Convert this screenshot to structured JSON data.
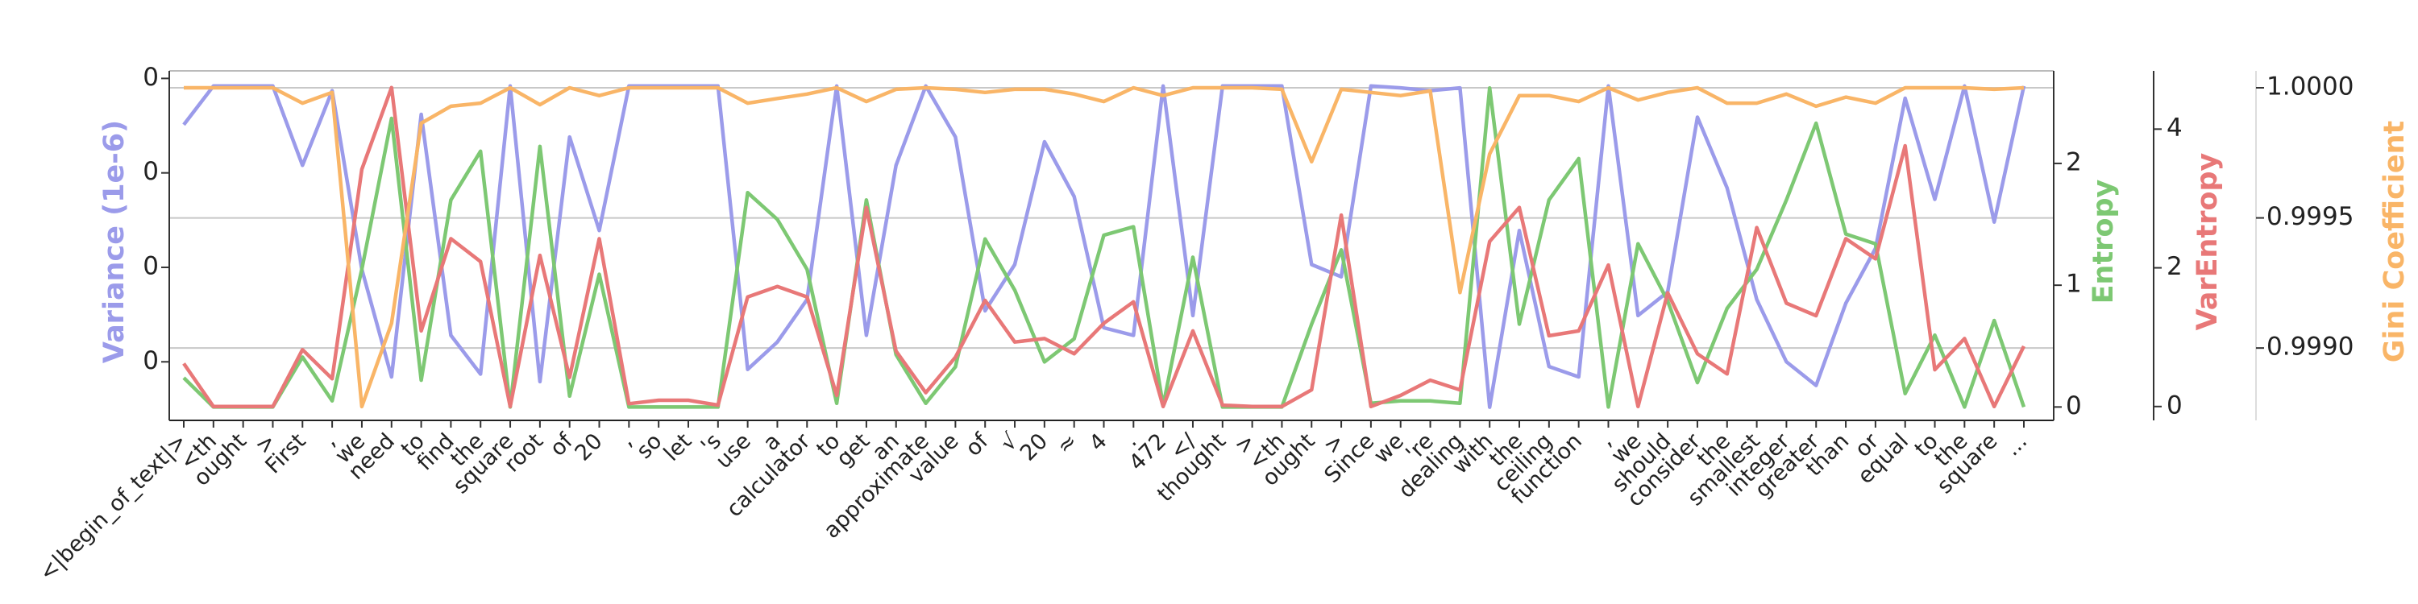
{
  "chart_data": {
    "type": "line",
    "categories": [
      "<|begin_of_text|>",
      "<th",
      "ought",
      ">",
      "First",
      ",",
      "we",
      "need",
      "to",
      "find",
      "the",
      "square",
      "root",
      "of",
      "20",
      ",",
      "so",
      "let",
      "'s",
      "use",
      "a",
      "calculator",
      "to",
      "get",
      "an",
      "approximate",
      "value",
      "of",
      "√",
      "20",
      "≈",
      "4",
      ".",
      "472",
      "</",
      "thought",
      ">",
      "<th",
      "ought",
      ">",
      "Since",
      "we",
      "'re",
      "dealing",
      "with",
      "the",
      "ceiling",
      "function",
      ",",
      "we",
      "should",
      "consider",
      "the",
      "smallest",
      "integer",
      "greater",
      "than",
      "or",
      "equal",
      "to",
      "the",
      "square",
      "..."
    ],
    "ylim": [
      -0.62,
      3.08
    ],
    "yticks": [
      0,
      {
        "value": 1,
        "label": "0"
      },
      {
        "value": 2,
        "label": "0"
      },
      {
        "value": 3,
        "label": "0"
      }
    ],
    "y2lim": [
      -0.11,
      2.76
    ],
    "y2ticks": [
      0,
      1,
      2
    ],
    "y3lim": [
      -0.2,
      4.84
    ],
    "y3ticks": [
      0,
      2,
      4
    ],
    "y4lim": [
      0.998722,
      1.000065
    ],
    "y4ticks": [
      {
        "value": 0.999,
        "label": "0.9990"
      },
      {
        "value": 0.9995,
        "label": "0.9995"
      },
      {
        "value": 1,
        "label": "1.0000"
      }
    ],
    "grid": true,
    "series": [
      {
        "name": "Variance (1e-6)",
        "color": "#9b9bea",
        "axis": "y",
        "values": [
          2.51,
          2.92,
          2.92,
          2.92,
          2.08,
          2.87,
          0.98,
          -0.16,
          2.62,
          0.28,
          -0.13,
          2.92,
          -0.21,
          2.38,
          1.39,
          2.92,
          2.92,
          2.92,
          2.92,
          -0.08,
          0.21,
          0.66,
          2.92,
          0.28,
          2.08,
          2.92,
          2.38,
          0.54,
          1.03,
          2.33,
          1.75,
          0.36,
          0.28,
          2.92,
          0.49,
          2.92,
          2.92,
          2.92,
          1.03,
          0.9,
          2.92,
          2.9,
          2.87,
          2.9,
          -0.48,
          1.39,
          -0.05,
          -0.16,
          2.92,
          0.49,
          0.74,
          2.59,
          1.84,
          0.66,
          0.0,
          -0.25,
          0.62,
          1.2,
          2.79,
          1.72,
          2.92,
          1.48,
          2.92
        ]
      },
      {
        "name": "Entropy",
        "color": "#7dc873",
        "axis": "y2",
        "values": [
          0.24,
          0,
          0,
          0,
          0.41,
          0.05,
          1.13,
          2.37,
          0.22,
          1.7,
          2.1,
          0,
          2.14,
          0.09,
          1.09,
          0,
          0,
          0,
          0,
          1.76,
          1.54,
          1.13,
          0.03,
          1.7,
          0.43,
          0.03,
          0.33,
          1.38,
          0.96,
          0.37,
          0.56,
          1.41,
          1.48,
          0.01,
          1.23,
          0,
          0,
          0,
          0.68,
          1.29,
          0.03,
          0.05,
          0.05,
          0.03,
          2.62,
          0.68,
          1.7,
          2.04,
          0,
          1.34,
          0.87,
          0.2,
          0.81,
          1.13,
          1.7,
          2.33,
          1.42,
          1.34,
          0.11,
          0.59,
          0,
          0.71,
          0
        ]
      },
      {
        "name": "VarEntropy",
        "color": "#e87878",
        "axis": "y3",
        "values": [
          0.62,
          0,
          0,
          0,
          0.82,
          0.4,
          3.42,
          4.6,
          1.09,
          2.42,
          2.09,
          0,
          2.18,
          0.42,
          2.42,
          0.04,
          0.09,
          0.09,
          0.02,
          1.58,
          1.73,
          1.58,
          0.16,
          2.87,
          0.8,
          0.2,
          0.71,
          1.53,
          0.93,
          0.98,
          0.76,
          1.2,
          1.51,
          0,
          1.09,
          0.02,
          0,
          0,
          0.24,
          2.76,
          0,
          0.16,
          0.38,
          0.24,
          2.38,
          2.87,
          1.02,
          1.09,
          2.04,
          0,
          1.64,
          0.76,
          0.47,
          2.58,
          1.49,
          1.31,
          2.42,
          2.13,
          3.76,
          0.53,
          0.98,
          0,
          0.87
        ]
      },
      {
        "name": "Gini Coefficient",
        "color": "#f9b567",
        "axis": "y4",
        "values": [
          1,
          1,
          1,
          1,
          0.999941,
          0.999982,
          0.998775,
          0.999095,
          0.999864,
          0.999929,
          0.999941,
          1,
          0.999935,
          1,
          0.99997,
          1,
          1,
          1,
          1,
          0.999941,
          0.999959,
          0.999976,
          1,
          0.999947,
          0.999994,
          1,
          0.999994,
          0.999982,
          0.999994,
          0.999994,
          0.999976,
          0.999947,
          1,
          0.99997,
          1,
          1,
          1,
          0.999994,
          0.999716,
          0.999994,
          0.999982,
          0.99997,
          0.999988,
          0.999213,
          0.999746,
          0.99997,
          0.99997,
          0.999947,
          1,
          0.999953,
          0.999982,
          1,
          0.999941,
          0.999941,
          0.999976,
          0.999929,
          0.999964,
          0.999941,
          1,
          1,
          1,
          0.999994,
          1
        ]
      }
    ]
  }
}
